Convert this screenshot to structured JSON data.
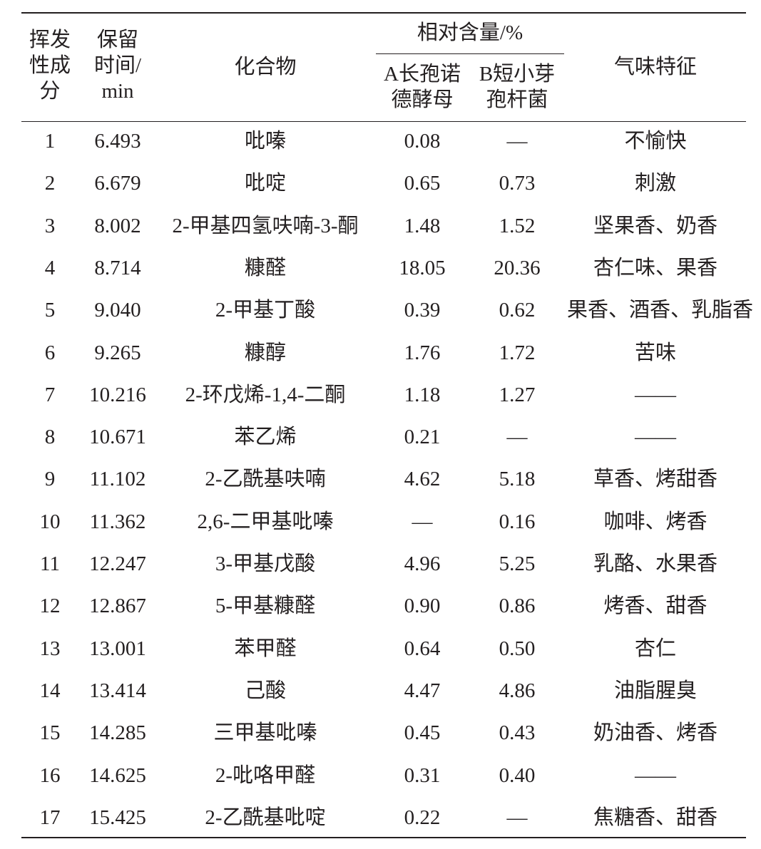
{
  "headers": {
    "col1": [
      "挥发",
      "性成",
      "分"
    ],
    "col2": [
      "保留",
      "时间/",
      "min"
    ],
    "col3": "化合物",
    "group": "相对含量/%",
    "col4": [
      "A长孢诺",
      "德酵母"
    ],
    "col5": [
      "B短小芽",
      "孢杆菌"
    ],
    "col6": "气味特征"
  },
  "rows": [
    [
      "1",
      "6.493",
      "吡嗪",
      "0.08",
      "—",
      "不愉快"
    ],
    [
      "2",
      "6.679",
      "吡啶",
      "0.65",
      "0.73",
      "刺激"
    ],
    [
      "3",
      "8.002",
      "2-甲基四氢呋喃-3-酮",
      "1.48",
      "1.52",
      "坚果香、奶香"
    ],
    [
      "4",
      "8.714",
      "糠醛",
      "18.05",
      "20.36",
      "杏仁味、果香"
    ],
    [
      "5",
      "9.040",
      "2-甲基丁酸",
      "0.39",
      "0.62",
      "果香、酒香、乳脂香"
    ],
    [
      "6",
      "9.265",
      "糠醇",
      "1.76",
      "1.72",
      "苦味"
    ],
    [
      "7",
      "10.216",
      "2-环戊烯-1,4-二酮",
      "1.18",
      "1.27",
      "——"
    ],
    [
      "8",
      "10.671",
      "苯乙烯",
      "0.21",
      "—",
      "——"
    ],
    [
      "9",
      "11.102",
      "2-乙酰基呋喃",
      "4.62",
      "5.18",
      "草香、烤甜香"
    ],
    [
      "10",
      "11.362",
      "2,6-二甲基吡嗪",
      "—",
      "0.16",
      "咖啡、烤香"
    ],
    [
      "11",
      "12.247",
      "3-甲基戊酸",
      "4.96",
      "5.25",
      "乳酪、水果香"
    ],
    [
      "12",
      "12.867",
      "5-甲基糠醛",
      "0.90",
      "0.86",
      "烤香、甜香"
    ],
    [
      "13",
      "13.001",
      "苯甲醛",
      "0.64",
      "0.50",
      "杏仁"
    ],
    [
      "14",
      "13.414",
      "己酸",
      "4.47",
      "4.86",
      "油脂腥臭"
    ],
    [
      "15",
      "14.285",
      "三甲基吡嗪",
      "0.45",
      "0.43",
      "奶油香、烤香"
    ],
    [
      "16",
      "14.625",
      "2-吡咯甲醛",
      "0.31",
      "0.40",
      "——"
    ],
    [
      "17",
      "15.425",
      "2-乙酰基吡啶",
      "0.22",
      "—",
      "焦糖香、甜香"
    ]
  ]
}
